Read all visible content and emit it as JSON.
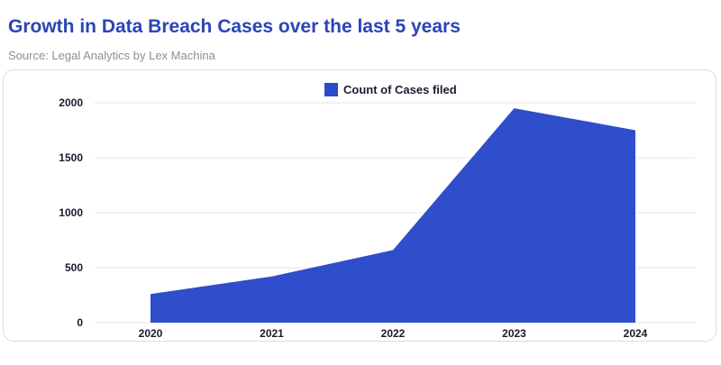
{
  "header": {
    "title": "Growth in Data Breach Cases over the last 5 years",
    "subtitle": "Source: Legal Analytics by Lex Machina"
  },
  "chart_data": {
    "type": "area",
    "title": "Growth in Data Breach Cases over the last 5 years",
    "subtitle": "Source: Legal Analytics by Lex Machina",
    "xlabel": "",
    "ylabel": "",
    "categories": [
      "2020",
      "2021",
      "2022",
      "2023",
      "2024"
    ],
    "series": [
      {
        "name": "Count of Cases filed",
        "values": [
          260,
          420,
          660,
          1950,
          1750
        ],
        "color": "#2b4acb"
      }
    ],
    "ylim": [
      0,
      2000
    ],
    "yticks": [
      "0",
      "500",
      "1000",
      "1500",
      "2000"
    ],
    "grid": true,
    "legend": "top-center"
  }
}
